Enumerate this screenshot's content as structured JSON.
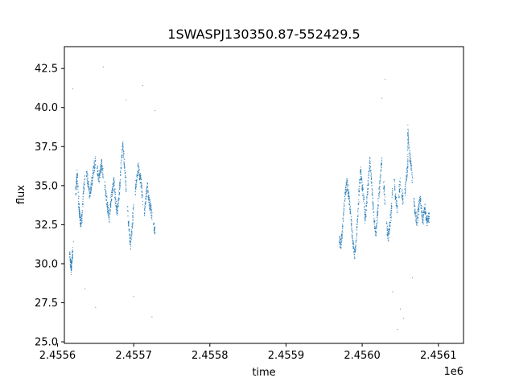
{
  "chart_data": {
    "type": "scatter",
    "title": "1SWASPJ130350.87-552429.5",
    "xlabel": "time",
    "ylabel": "flux",
    "x_offset_label": "1e6",
    "xlim": [
      2455609,
      2456133
    ],
    "ylim": [
      24.9,
      43.9
    ],
    "x_ticks": [
      2455610,
      2455670,
      2455680,
      2455690,
      2455700,
      2455710,
      2455720,
      2455730,
      2455740,
      2455750,
      2455760,
      2455770,
      2455780,
      2455790,
      2455800,
      2455810,
      2455820,
      2455830,
      2455840,
      2455850,
      2455860,
      2455870,
      2455880,
      2455890,
      2455900,
      2455910,
      2455920,
      2455930,
      2455940,
      2455950,
      2455960,
      2455970,
      2455980,
      2455990,
      2456000,
      2456010,
      2456020,
      2456030,
      2456040,
      2456050,
      2456060,
      2456070,
      2456080,
      2456090,
      2456100,
      2456110
    ],
    "x_tick_labels": [
      "2.4556",
      "2.4557",
      "2.4558",
      "2.4559",
      "2.4560",
      "2.4561"
    ],
    "x_tick_values": [
      2455600,
      2455700,
      2455800,
      2455900,
      2456000,
      2456100
    ],
    "y_tick_values": [
      25.0,
      27.5,
      30.0,
      32.5,
      35.0,
      37.5,
      40.0,
      42.5
    ],
    "y_tick_labels": [
      "25.0",
      "27.5",
      "30.0",
      "32.5",
      "35.0",
      "37.5",
      "40.0",
      "42.5"
    ],
    "grid": false,
    "series": [
      {
        "color": "#1f77b4",
        "points": [
          [
            2455616,
            30.6
          ],
          [
            2455617,
            30.1
          ],
          [
            2455618,
            29.6
          ],
          [
            2455619,
            30.2
          ],
          [
            2455620,
            30.8
          ],
          [
            2455621,
            31.4
          ],
          [
            2455624,
            34.5
          ],
          [
            2455625,
            35.2
          ],
          [
            2455626,
            35.8
          ],
          [
            2455628,
            33.8
          ],
          [
            2455629,
            33.1
          ],
          [
            2455630,
            32.6
          ],
          [
            2455632,
            32.9
          ],
          [
            2455634,
            34.6
          ],
          [
            2455636,
            35.4
          ],
          [
            2455638,
            35.9
          ],
          [
            2455640,
            35.2
          ],
          [
            2455642,
            34.5
          ],
          [
            2455644,
            34.9
          ],
          [
            2455646,
            35.5
          ],
          [
            2455648,
            36.2
          ],
          [
            2455650,
            36.6
          ],
          [
            2455652,
            36.1
          ],
          [
            2455654,
            35.4
          ],
          [
            2455656,
            35.9
          ],
          [
            2455658,
            36.4
          ],
          [
            2455660,
            35.7
          ],
          [
            2455662,
            35.0
          ],
          [
            2455664,
            34.3
          ],
          [
            2455666,
            33.6
          ],
          [
            2455668,
            32.8
          ],
          [
            2455670,
            33.9
          ],
          [
            2455672,
            34.8
          ],
          [
            2455674,
            35.3
          ],
          [
            2455676,
            34.2
          ],
          [
            2455678,
            33.2
          ],
          [
            2455680,
            33.9
          ],
          [
            2455682,
            35.1
          ],
          [
            2455684,
            36.8
          ],
          [
            2455686,
            37.5
          ],
          [
            2455688,
            36.2
          ],
          [
            2455690,
            34.9
          ],
          [
            2455692,
            33.4
          ],
          [
            2455694,
            32.1
          ],
          [
            2455696,
            31.2
          ],
          [
            2455698,
            32.4
          ],
          [
            2455700,
            33.8
          ],
          [
            2455702,
            34.6
          ],
          [
            2455704,
            35.4
          ],
          [
            2455706,
            36.2
          ],
          [
            2455708,
            35.6
          ],
          [
            2455710,
            35.1
          ],
          [
            2455712,
            34.0
          ],
          [
            2455714,
            33.1
          ],
          [
            2455716,
            34.2
          ],
          [
            2455718,
            34.9
          ],
          [
            2455720,
            34.1
          ],
          [
            2455722,
            33.6
          ],
          [
            2455724,
            33.1
          ],
          [
            2455726,
            32.5
          ],
          [
            2455728,
            32.0
          ],
          [
            2455620,
            41.2
          ],
          [
            2455636,
            28.4
          ],
          [
            2455660,
            42.6
          ],
          [
            2455700,
            27.9
          ],
          [
            2455712,
            41.4
          ],
          [
            2455724,
            26.6
          ],
          [
            2455728,
            39.8
          ],
          [
            2455650,
            27.2
          ],
          [
            2455690,
            40.5
          ],
          [
            2455970,
            31.5
          ],
          [
            2455972,
            31.2
          ],
          [
            2455974,
            32.1
          ],
          [
            2455976,
            33.5
          ],
          [
            2455978,
            34.6
          ],
          [
            2455980,
            35.2
          ],
          [
            2455982,
            34.5
          ],
          [
            2455984,
            33.6
          ],
          [
            2455986,
            32.5
          ],
          [
            2455988,
            31.3
          ],
          [
            2455990,
            30.6
          ],
          [
            2455992,
            31.4
          ],
          [
            2455994,
            32.9
          ],
          [
            2455996,
            34.6
          ],
          [
            2455998,
            35.9
          ],
          [
            2456000,
            35.0
          ],
          [
            2456002,
            34.1
          ],
          [
            2456004,
            32.8
          ],
          [
            2456006,
            33.9
          ],
          [
            2456008,
            35.2
          ],
          [
            2456010,
            36.6
          ],
          [
            2456012,
            35.4
          ],
          [
            2456014,
            33.9
          ],
          [
            2456016,
            32.6
          ],
          [
            2456018,
            32.0
          ],
          [
            2456020,
            33.1
          ],
          [
            2456022,
            34.5
          ],
          [
            2456024,
            35.6
          ],
          [
            2456026,
            36.8
          ],
          [
            2456028,
            35.2
          ],
          [
            2456030,
            33.8
          ],
          [
            2456032,
            32.6
          ],
          [
            2456034,
            31.6
          ],
          [
            2456036,
            32.4
          ],
          [
            2456038,
            33.2
          ],
          [
            2456040,
            34.6
          ],
          [
            2456042,
            35.4
          ],
          [
            2456044,
            34.3
          ],
          [
            2456046,
            33.4
          ],
          [
            2456048,
            34.4
          ],
          [
            2456050,
            35.2
          ],
          [
            2456052,
            34.6
          ],
          [
            2456054,
            33.9
          ],
          [
            2456056,
            34.5
          ],
          [
            2456058,
            35.6
          ],
          [
            2456060,
            36.2
          ],
          [
            2456062,
            37.1
          ],
          [
            2456064,
            36.4
          ],
          [
            2456066,
            35.2
          ],
          [
            2456068,
            34.0
          ],
          [
            2456070,
            33.2
          ],
          [
            2456072,
            32.6
          ],
          [
            2456074,
            33.5
          ],
          [
            2456076,
            34.2
          ],
          [
            2456078,
            33.4
          ],
          [
            2456080,
            32.8
          ],
          [
            2456082,
            33.6
          ],
          [
            2456084,
            32.9
          ],
          [
            2456086,
            32.7
          ],
          [
            2456088,
            33.0
          ],
          [
            2456030,
            41.8
          ],
          [
            2456040,
            28.2
          ],
          [
            2456050,
            27.1
          ],
          [
            2456054,
            26.5
          ],
          [
            2456060,
            38.6
          ],
          [
            2456066,
            29.1
          ],
          [
            2456026,
            40.6
          ],
          [
            2456046,
            25.8
          ]
        ]
      }
    ]
  }
}
